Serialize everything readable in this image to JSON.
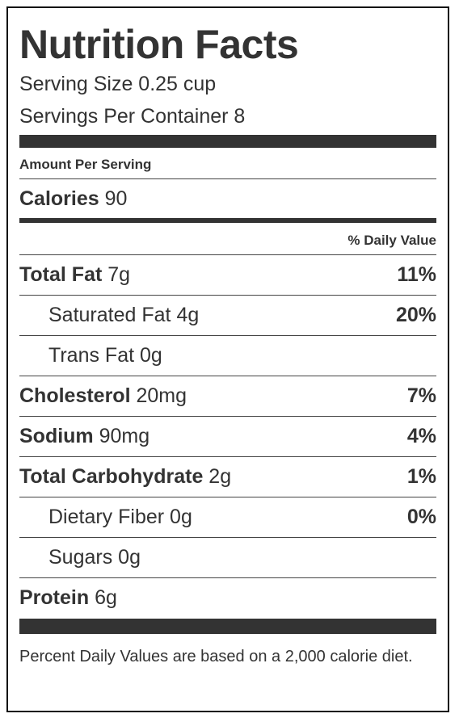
{
  "title": "Nutrition Facts",
  "serving_size": "Serving Size 0.25 cup",
  "servings_per_container": "Servings Per Container 8",
  "amount_per_serving": "Amount Per Serving",
  "calories": {
    "label": "Calories",
    "value": "90"
  },
  "daily_value_header": "% Daily Value",
  "nutrients": [
    {
      "label": "Total Fat",
      "amount": "7g",
      "dv": "11%"
    },
    {
      "label": "Saturated Fat",
      "amount": "4g",
      "dv": "20%"
    },
    {
      "label": "Trans Fat",
      "amount": "0g",
      "dv": ""
    },
    {
      "label": "Cholesterol",
      "amount": "20mg",
      "dv": "7%"
    },
    {
      "label": "Sodium",
      "amount": "90mg",
      "dv": "4%"
    },
    {
      "label": "Total Carbohydrate",
      "amount": "2g",
      "dv": "1%"
    },
    {
      "label": "Dietary Fiber",
      "amount": "0g",
      "dv": "0%"
    },
    {
      "label": "Sugars",
      "amount": "0g",
      "dv": ""
    },
    {
      "label": "Protein",
      "amount": "6g",
      "dv": ""
    }
  ],
  "footnote": "Percent Daily Values are based on a 2,000 calorie diet."
}
